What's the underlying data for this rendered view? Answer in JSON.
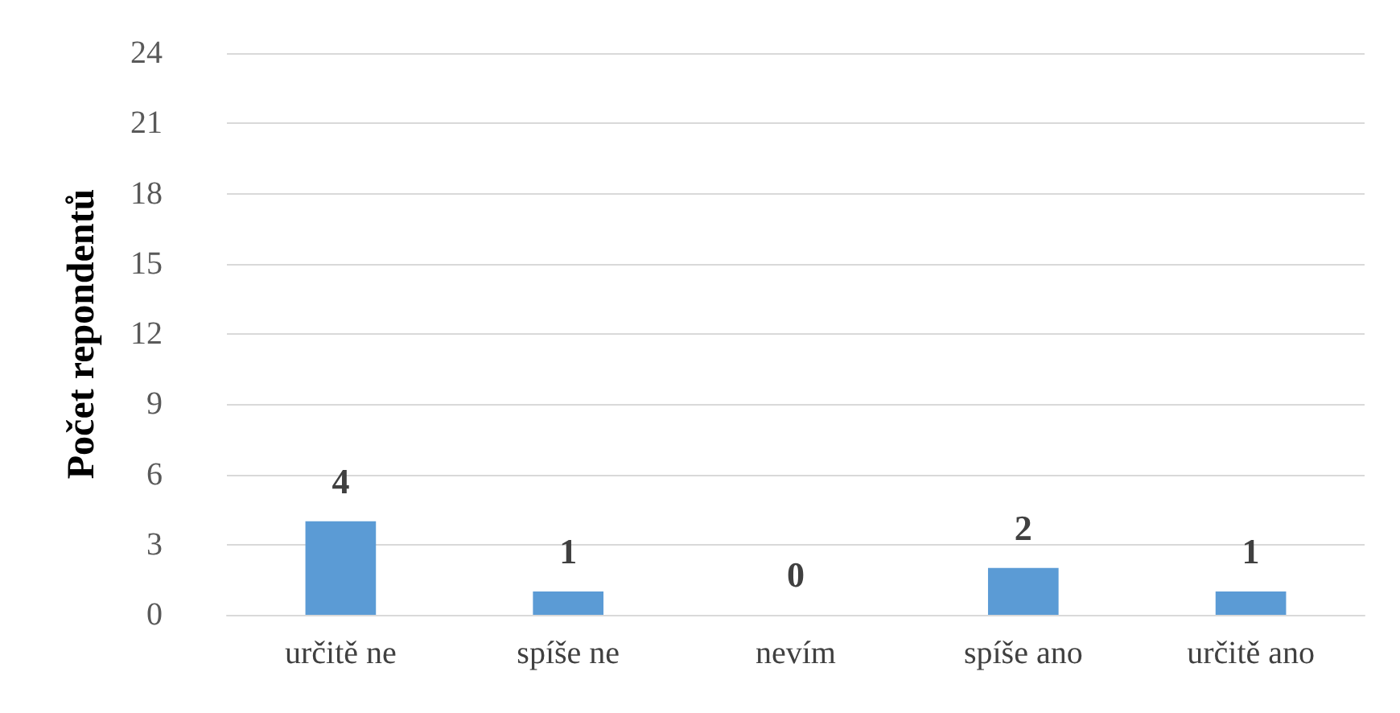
{
  "chart_data": {
    "type": "bar",
    "ylabel": "Počet repondentů",
    "categories": [
      "určitě ne",
      "spíše ne",
      "nevím",
      "spíše ano",
      "určitě ano"
    ],
    "values": [
      4,
      1,
      0,
      2,
      1
    ],
    "color": "#5b9bd5",
    "ylim": [
      0,
      24
    ],
    "yticks": [
      0,
      3,
      6,
      9,
      12,
      15,
      18,
      21,
      24
    ],
    "grid": "y",
    "data_labels": true
  }
}
